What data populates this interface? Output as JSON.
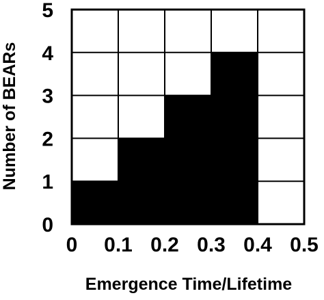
{
  "chart_data": {
    "type": "bar",
    "title": "",
    "xlabel": "Emergence Time/Lifetime",
    "ylabel": "Number of BEARs",
    "bin_edges": [
      0,
      0.1,
      0.2,
      0.3,
      0.4,
      0.5
    ],
    "values": [
      1,
      2,
      3,
      4,
      0
    ],
    "x_ticks": [
      "0",
      "0.1",
      "0.2",
      "0.3",
      "0.4",
      "0.5"
    ],
    "y_ticks": [
      "0",
      "1",
      "2",
      "3",
      "4",
      "5"
    ],
    "xlim": [
      0,
      0.5
    ],
    "ylim": [
      0,
      5
    ],
    "grid": true,
    "bar_color": "#000000",
    "grid_color": "#000000",
    "background": "#ffffff"
  }
}
